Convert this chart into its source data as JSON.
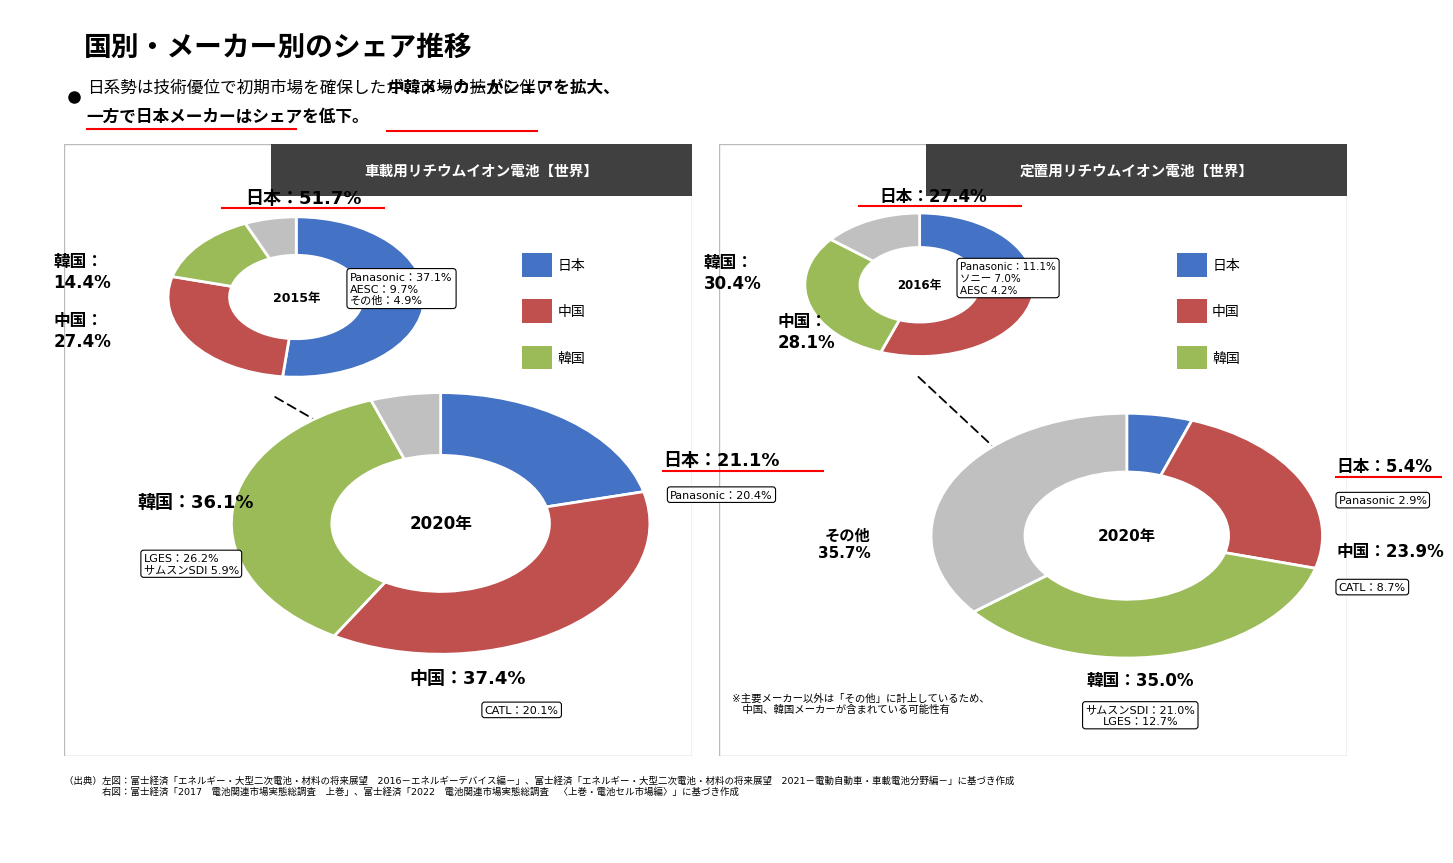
{
  "title": "国別・メーカー別のシェア推移",
  "subtitle_normal": "日系勢は技術優位で初期市場を確保したが、市場の拡大に伴い",
  "subtitle_bold_1": "中韓メーカーがシェアを拡大、",
  "subtitle_bold_2": "一方で日本メーカーはシェアを低下。",
  "colors": {
    "japan": "#4472C4",
    "china": "#C0504D",
    "korea": "#9BBB59",
    "other": "#C0C0C0",
    "bg": "#FFFFFF",
    "subtitle_bg": "#D6EAF8",
    "header_bg": "#404040",
    "header_text": "#FFFFFF"
  },
  "left_chart": {
    "title": "車載用リチウムイオン電池【世界】",
    "year2015": {
      "label": "2015年",
      "japan": 51.7,
      "china": 27.4,
      "korea": 14.4,
      "other": 6.5,
      "japan_label": "日本：51.7%",
      "china_label": "中国：\n27.4%",
      "korea_label": "韓国：\n14.4%",
      "japan_detail": "Panasonic：37.1%\nAESC：9.7%\nその他：4.9%"
    },
    "year2020": {
      "label": "2020年",
      "japan": 21.1,
      "china": 37.4,
      "korea": 36.1,
      "other": 5.4,
      "japan_label": "日本：21.1%",
      "china_label": "中国：37.4%",
      "korea_label": "韓国：36.1%",
      "japan_detail": "Panasonic：20.4%",
      "china_detail": "CATL：20.1%",
      "korea_detail": "LGES：26.2%\nサムスンSDI 5.9%"
    },
    "legend": [
      "日本",
      "中国",
      "韓国"
    ]
  },
  "right_chart": {
    "title": "定置用リチウムイオン電池【世界】",
    "year2016": {
      "label": "2016年",
      "japan": 27.4,
      "china": 28.1,
      "korea": 30.4,
      "other": 14.1,
      "japan_label": "日本：27.4%",
      "china_label": "中国：\n28.1%",
      "korea_label": "韓国：\n30.4%",
      "japan_detail": "Panasonic：11.1%\nソニー 7.0%\nAESC 4.2%"
    },
    "year2020": {
      "label": "2020年",
      "japan": 5.4,
      "china": 23.9,
      "korea": 35.0,
      "other": 35.7,
      "japan_label": "日本：5.4%",
      "china_label": "中国：23.9%",
      "korea_label": "韓国：35.0%",
      "other_label": "その他\n35.7%",
      "japan_detail": "Panasonic 2.9%",
      "china_detail": "CATL：8.7%",
      "korea_detail": "サムスンSDI：21.0%\nLGES：12.7%"
    },
    "legend": [
      "日本",
      "中国",
      "韓国"
    ]
  },
  "note_text": "※主要メーカー以外は「その他」に計上しているため、\n　中国、韓国メーカーが含まれている可能性有",
  "source_text_1": "（出典）左図：富士経済「エネルギー・大型二次電池・材料の将来展望　2016－エネルギーデバイス編－」、富士経済「エネルギー・大型二次電池・材料の将来展望　2021－電動自動車・車載電池分野編－」に基づき作成",
  "source_text_2": "　　　　右図：富士経済「2017　電池関連市場実態総調査　上巻」、富士経済「2022　電池関連市場実態総調査　〈上巻・電池セル市場編〉」に基づき作成"
}
